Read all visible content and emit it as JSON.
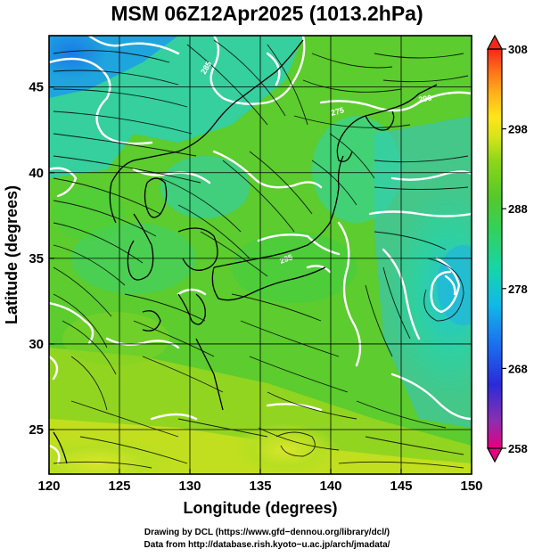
{
  "title": "MSM 06Z12Apr2025 (1013.2hPa)",
  "map": {
    "lon_range": [
      120,
      150
    ],
    "lat_range": [
      22.4,
      48
    ],
    "x_ticks": [
      "120",
      "125",
      "130",
      "135",
      "140",
      "145",
      "150"
    ],
    "y_ticks": [
      "25",
      "30",
      "35",
      "40",
      "45"
    ],
    "x_tick_values": [
      120,
      125,
      130,
      135,
      140,
      145,
      150
    ],
    "y_tick_values": [
      25,
      30,
      35,
      40,
      45
    ],
    "xlabel": "Longitude (degrees)",
    "ylabel": "Latitude  (degrees)",
    "grid": true,
    "field": "temperature",
    "contour_color": "#ffffff",
    "coast_color": "#000000",
    "contour_labels": [
      "285",
      "275",
      "295",
      "290"
    ]
  },
  "colorbar": {
    "ticks": [
      "308",
      "298",
      "288",
      "278",
      "268",
      "258"
    ],
    "tick_values": [
      308,
      298,
      288,
      278,
      268,
      258
    ],
    "range": [
      258,
      308
    ],
    "colors": [
      "#e4007f",
      "#8b2fb0",
      "#2a2bd8",
      "#1b6ff0",
      "#13b8e8",
      "#18d4a8",
      "#33d15a",
      "#56c82a",
      "#8ed61a",
      "#d6e41a",
      "#ffe51a",
      "#ffb01a",
      "#ff6a1a",
      "#f2281a"
    ]
  },
  "credits": {
    "line1": "Drawing by DCL (https://www.gfd−dennou.org/library/dcl/)",
    "line2": "Data from http://database.rish.kyoto−u.ac.jp/arch/jmadata/"
  }
}
